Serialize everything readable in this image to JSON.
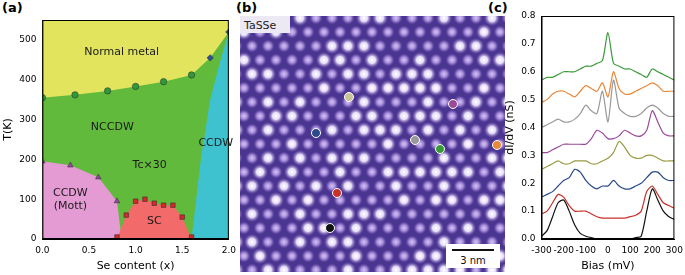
{
  "panel_labels": [
    "(a)",
    "(b)",
    "(c)"
  ],
  "chart_data": [
    {
      "type": "scatter",
      "x_label": "Se content (x)",
      "y_label": "T(K)",
      "xlim": [
        0,
        2
      ],
      "xticks": [
        {
          "value": 0,
          "label": "0.0"
        },
        {
          "value": 0.5,
          "label": "0.5"
        },
        {
          "value": 1,
          "label": "1.0"
        },
        {
          "value": 1.5,
          "label": "1.5"
        },
        {
          "value": 2,
          "label": "2.0"
        }
      ],
      "ylim": [
        0,
        550
      ],
      "yticks": [
        0,
        100,
        200,
        300,
        400,
        500
      ],
      "grid": false,
      "series": [
        {
          "type": "area",
          "color": "#e2e45e",
          "x": [
            0,
            2
          ],
          "values": [
            550,
            550
          ]
        },
        {
          "type": "area",
          "color": "#62ba3c",
          "x": [
            0,
            0.35,
            0.7,
            1.0,
            1.3,
            1.6,
            1.8,
            2.0
          ],
          "values": [
            355,
            362,
            372,
            383,
            395,
            412,
            455,
            520
          ]
        },
        {
          "type": "area",
          "color": "#e49ad2",
          "x": [
            0,
            0.3,
            0.6,
            0.8,
            0.85
          ],
          "values": [
            195,
            185,
            155,
            95,
            0
          ]
        },
        {
          "type": "area",
          "color": "#f26a6a",
          "x": [
            0.8,
            0.9,
            1.0,
            1.1,
            1.2,
            1.3,
            1.4,
            1.5,
            1.6
          ],
          "values": [
            0,
            60,
            95,
            100,
            90,
            85,
            85,
            55,
            0
          ]
        },
        {
          "type": "area",
          "color": "#3fc2cf",
          "x": [
            1.6,
            1.7,
            1.8,
            1.9,
            2.0
          ],
          "values": [
            0,
            200,
            350,
            440,
            520
          ]
        },
        {
          "type": "scatter",
          "marker": "circle",
          "color": "#2f9a3a",
          "x": [
            0,
            0.35,
            0.7,
            1.0,
            1.3,
            1.6
          ],
          "values": [
            355,
            362,
            372,
            383,
            395,
            412
          ]
        },
        {
          "type": "scatter",
          "marker": "diamond",
          "color": "#2b4f9a",
          "x": [
            1.8,
            2.0
          ],
          "values": [
            455,
            520
          ]
        },
        {
          "type": "scatter",
          "marker": "triangle",
          "color": "#9a4aa0",
          "x": [
            0,
            0.3,
            0.6,
            0.8
          ],
          "values": [
            195,
            185,
            155,
            95
          ]
        },
        {
          "type": "scatter",
          "marker": "square",
          "color": "#d8262a",
          "x": [
            0.8,
            0.9,
            1.0,
            1.1,
            1.2,
            1.3,
            1.4,
            1.5,
            1.6
          ],
          "values": [
            5,
            60,
            95,
            100,
            90,
            85,
            85,
            55,
            5
          ]
        }
      ],
      "annotations": [
        {
          "text": "Normal metal",
          "x": 0.85,
          "y": 470
        },
        {
          "text": "NCCDW",
          "x": 0.75,
          "y": 280
        },
        {
          "text": "CCDW (Mott)",
          "x": 0.3,
          "y": 100
        },
        {
          "text": "Tc×30",
          "x": 1.15,
          "y": 185
        },
        {
          "text": "SC",
          "x": 1.2,
          "y": 45
        },
        {
          "text": "CCDW",
          "x": 1.86,
          "y": 240
        }
      ]
    },
    {
      "type": "line",
      "x_label": "Bias (mV)",
      "y_label": "dI/dV (nS)",
      "x": [
        -300,
        -275,
        -250,
        -225,
        -200,
        -175,
        -150,
        -125,
        -100,
        -75,
        -50,
        -25,
        0,
        25,
        50,
        75,
        100,
        125,
        150,
        175,
        200,
        225,
        250,
        275,
        300
      ],
      "xlim": [
        -300,
        300
      ],
      "xticks": [
        -300,
        -200,
        -100,
        0,
        100,
        200,
        300
      ],
      "ylim": [
        0,
        0.8
      ],
      "yticks": [
        {
          "value": 0,
          "label": "0.0"
        },
        {
          "value": 0.1,
          "label": "0.1"
        },
        {
          "value": 0.2,
          "label": "0.2"
        },
        {
          "value": 0.3,
          "label": "0.3"
        },
        {
          "value": 0.4,
          "label": "0.4"
        },
        {
          "value": 0.5,
          "label": "0.5"
        },
        {
          "value": 0.6,
          "label": "0.6"
        },
        {
          "value": 0.7,
          "label": "0.7"
        },
        {
          "value": 0.8,
          "label": "0.8"
        }
      ],
      "grid": false,
      "series": [
        {
          "color": "#111111",
          "values": [
            0.01,
            0.03,
            0.08,
            0.13,
            0.14,
            0.1,
            0.05,
            0.02,
            0.01,
            0.005,
            0,
            0,
            0,
            0,
            0,
            0,
            0,
            0.005,
            0.01,
            0.1,
            0.18,
            0.14,
            0.1,
            0.08,
            0.07
          ]
        },
        {
          "color": "#c8322a",
          "values": [
            0.09,
            0.1,
            0.13,
            0.16,
            0.15,
            0.12,
            0.1,
            0.1,
            0.1,
            0.09,
            0.08,
            0.075,
            0.075,
            0.075,
            0.075,
            0.075,
            0.08,
            0.085,
            0.1,
            0.17,
            0.19,
            0.16,
            0.13,
            0.12,
            0.11
          ]
        },
        {
          "color": "#2a4a8a",
          "values": [
            0.15,
            0.16,
            0.17,
            0.19,
            0.21,
            0.22,
            0.25,
            0.24,
            0.21,
            0.19,
            0.18,
            0.19,
            0.19,
            0.21,
            0.19,
            0.18,
            0.18,
            0.19,
            0.2,
            0.22,
            0.24,
            0.24,
            0.22,
            0.21,
            0.21
          ]
        },
        {
          "color": "#9a9a40",
          "values": [
            0.25,
            0.26,
            0.27,
            0.28,
            0.27,
            0.27,
            0.28,
            0.28,
            0.28,
            0.27,
            0.27,
            0.28,
            0.29,
            0.31,
            0.35,
            0.33,
            0.3,
            0.29,
            0.29,
            0.3,
            0.3,
            0.29,
            0.28,
            0.28,
            0.28
          ]
        },
        {
          "color": "#9b4a9b",
          "values": [
            0.31,
            0.31,
            0.32,
            0.33,
            0.34,
            0.34,
            0.34,
            0.34,
            0.34,
            0.36,
            0.39,
            0.38,
            0.36,
            0.36,
            0.37,
            0.39,
            0.38,
            0.37,
            0.37,
            0.39,
            0.46,
            0.42,
            0.38,
            0.37,
            0.37
          ]
        },
        {
          "color": "#999999",
          "values": [
            0.4,
            0.41,
            0.42,
            0.43,
            0.42,
            0.42,
            0.43,
            0.45,
            0.48,
            0.46,
            0.45,
            0.53,
            0.42,
            0.57,
            0.47,
            0.45,
            0.44,
            0.44,
            0.45,
            0.47,
            0.48,
            0.47,
            0.45,
            0.44,
            0.44
          ]
        },
        {
          "color": "#e8883a",
          "values": [
            0.49,
            0.5,
            0.52,
            0.53,
            0.53,
            0.52,
            0.51,
            0.53,
            0.55,
            0.54,
            0.53,
            0.56,
            0.51,
            0.6,
            0.54,
            0.52,
            0.52,
            0.53,
            0.54,
            0.55,
            0.56,
            0.55,
            0.53,
            0.53,
            0.53
          ]
        },
        {
          "color": "#3a9a3a",
          "values": [
            0.57,
            0.58,
            0.58,
            0.59,
            0.6,
            0.6,
            0.6,
            0.61,
            0.62,
            0.62,
            0.63,
            0.64,
            0.74,
            0.63,
            0.62,
            0.61,
            0.61,
            0.6,
            0.59,
            0.58,
            0.61,
            0.6,
            0.59,
            0.58,
            0.57
          ]
        }
      ]
    }
  ],
  "image": {
    "label": "TaSSe",
    "scale_bar": "3 nm",
    "marker_colors": [
      "#c9c29a",
      "#9b4a9b",
      "#2a4a8a",
      "#999999",
      "#3a9a3a",
      "#e8883a",
      "#c8322a",
      "#111111"
    ]
  }
}
